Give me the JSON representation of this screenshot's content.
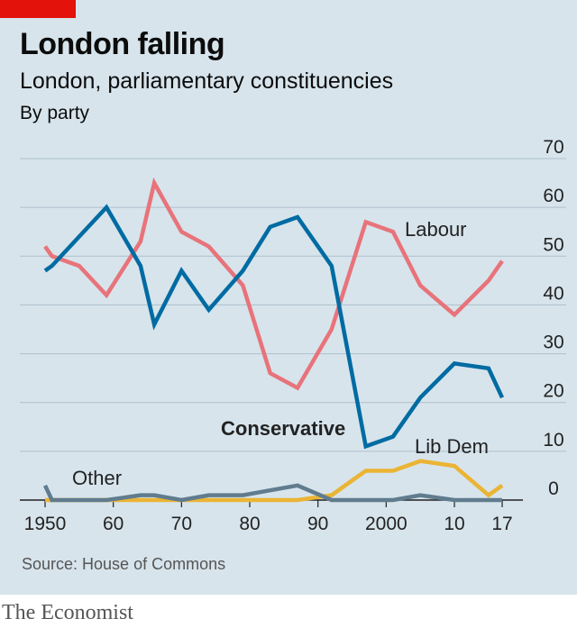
{
  "header": {
    "title": "London falling",
    "subtitle": "London, parliamentary constituencies",
    "unit": "By party"
  },
  "footer": {
    "source": "Source: House of Commons",
    "brand": "The Economist"
  },
  "colors": {
    "background": "#d7e4ec",
    "accent": "#e3120b",
    "labour": "#e8737a",
    "conservative": "#006ba2",
    "libdem": "#ebb434",
    "other": "#607c8e"
  },
  "chart_data": {
    "type": "line",
    "ylim": [
      0,
      70
    ],
    "xlim": [
      1950,
      2017
    ],
    "yticks": [
      0,
      10,
      20,
      30,
      40,
      50,
      60,
      70
    ],
    "xticks": [
      1950,
      1960,
      1970,
      1980,
      1990,
      2000,
      2010,
      2017
    ],
    "xtick_labels": [
      "1950",
      "60",
      "70",
      "80",
      "90",
      "2000",
      "10",
      "17"
    ],
    "grid": true,
    "series": [
      {
        "name": "Labour",
        "color": "#e8737a",
        "x": [
          1950,
          1951,
          1955,
          1959,
          1964,
          1966,
          1970,
          1974,
          1979,
          1983,
          1987,
          1992,
          1997,
          2001,
          2005,
          2010,
          2015,
          2017
        ],
        "y": [
          52,
          50,
          48,
          42,
          53,
          65,
          55,
          52,
          44,
          26,
          23,
          35,
          57,
          55,
          44,
          38,
          45,
          49
        ]
      },
      {
        "name": "Conservative",
        "color": "#006ba2",
        "x": [
          1950,
          1951,
          1955,
          1959,
          1964,
          1966,
          1970,
          1974,
          1979,
          1983,
          1987,
          1992,
          1997,
          2001,
          2005,
          2010,
          2015,
          2017
        ],
        "y": [
          47,
          48,
          54,
          60,
          48,
          36,
          47,
          39,
          47,
          56,
          58,
          48,
          11,
          13,
          21,
          28,
          27,
          21
        ]
      },
      {
        "name": "Lib Dem",
        "color": "#ebb434",
        "x": [
          1950,
          1951,
          1955,
          1959,
          1964,
          1966,
          1970,
          1974,
          1979,
          1983,
          1987,
          1992,
          1997,
          2001,
          2005,
          2010,
          2015,
          2017
        ],
        "y": [
          0,
          0,
          0,
          0,
          0,
          0,
          0,
          0,
          0,
          0,
          0,
          1,
          6,
          6,
          8,
          7,
          1,
          3
        ]
      },
      {
        "name": "Other",
        "color": "#607c8e",
        "x": [
          1950,
          1951,
          1955,
          1959,
          1964,
          1966,
          1970,
          1974,
          1979,
          1983,
          1987,
          1992,
          1997,
          2001,
          2005,
          2010,
          2015,
          2017
        ],
        "y": [
          3,
          0,
          0,
          0,
          1,
          1,
          0,
          1,
          1,
          2,
          3,
          0,
          0,
          0,
          1,
          0,
          0,
          0
        ]
      }
    ]
  }
}
